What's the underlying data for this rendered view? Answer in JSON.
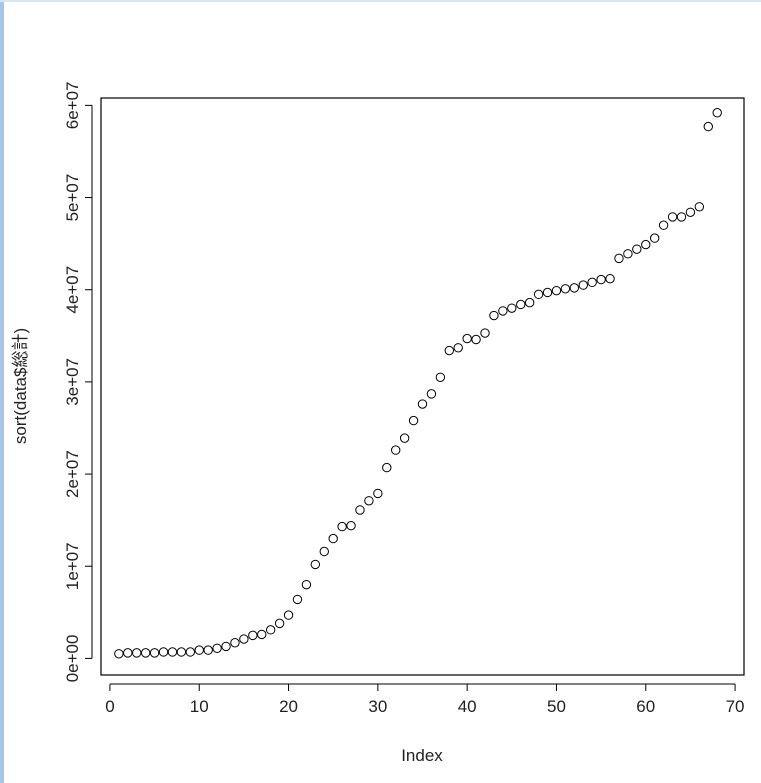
{
  "chart_data": {
    "type": "scatter",
    "title": "",
    "xlabel": "Index",
    "ylabel": "sort(data$総計)",
    "xlim": [
      -1,
      71
    ],
    "ylim": [
      -1800000,
      60800000
    ],
    "x_ticks": [
      0,
      10,
      20,
      30,
      40,
      50,
      60,
      70
    ],
    "x_tick_labels": [
      "0",
      "10",
      "20",
      "30",
      "40",
      "50",
      "60",
      "70"
    ],
    "y_ticks": [
      0,
      10000000,
      20000000,
      30000000,
      40000000,
      50000000,
      60000000
    ],
    "y_tick_labels": [
      "0e+00",
      "1e+07",
      "2e+07",
      "3e+07",
      "4e+07",
      "5e+07",
      "6e+07"
    ],
    "grid": false,
    "legend": "none",
    "marker": "open-circle",
    "colors": {
      "points": "#000000",
      "axes": "#000000",
      "background": "#ffffff"
    },
    "series": [
      {
        "x": [
          1,
          2,
          3,
          4,
          5,
          6,
          7,
          8,
          9,
          10,
          11,
          12,
          13,
          14,
          15,
          16,
          17,
          18,
          19,
          20,
          21,
          22,
          23,
          24,
          25,
          26,
          27,
          28,
          29,
          30,
          31,
          32,
          33,
          34,
          35,
          36,
          37,
          38,
          39,
          40,
          41,
          42,
          43,
          44,
          45,
          46,
          47,
          48,
          49,
          50,
          51,
          52,
          53,
          54,
          55,
          56,
          57,
          58,
          59,
          60,
          61,
          62,
          63,
          64,
          65,
          66,
          67,
          68
        ],
        "y": [
          500000,
          600000,
          600000,
          600000,
          600000,
          700000,
          700000,
          700000,
          700000,
          900000,
          900000,
          1100000,
          1300000,
          1700000,
          2100000,
          2500000,
          2600000,
          3100000,
          3800000,
          4700000,
          6400000,
          8000000,
          10200000,
          11600000,
          13000000,
          14300000,
          14400000,
          16100000,
          17100000,
          17900000,
          20700000,
          22600000,
          23900000,
          25800000,
          27600000,
          28700000,
          30500000,
          33400000,
          33700000,
          34700000,
          34600000,
          35300000,
          37200000,
          37700000,
          38000000,
          38400000,
          38600000,
          39500000,
          39700000,
          39900000,
          40100000,
          40200000,
          40500000,
          40800000,
          41100000,
          41200000,
          43400000,
          43900000,
          44400000,
          44900000,
          45600000,
          47000000,
          47900000,
          47900000,
          48400000,
          49000000,
          57700000,
          59200000
        ]
      }
    ]
  }
}
